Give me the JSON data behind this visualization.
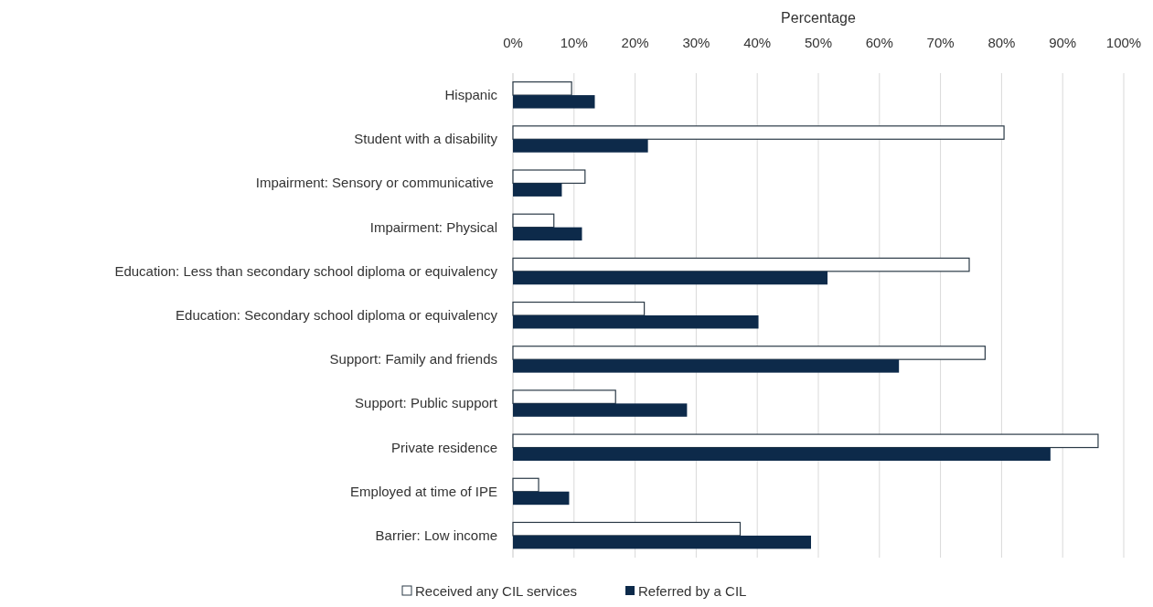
{
  "chart_data": {
    "type": "bar",
    "orientation": "horizontal",
    "xlabel": "Percentage",
    "categories": [
      "Hispanic",
      "Student with a disability",
      "Impairment: Sensory or communicative ",
      "Impairment: Physical",
      "Education: Less than secondary school diploma or equivalency",
      "Education: Secondary school diploma or equivalency",
      "Support: Family and friends",
      "Support: Public support",
      "Private residence",
      "Employed at time of IPE",
      "Barrier: Low income"
    ],
    "series": [
      {
        "name": "Received any CIL services",
        "color": "#ffffff",
        "values": [
          9.6,
          80.4,
          11.8,
          6.7,
          74.7,
          21.5,
          77.3,
          16.8,
          95.8,
          4.2,
          37.2
        ]
      },
      {
        "name": "Referred by a CIL",
        "color": "#0d2a4a",
        "values": [
          13.4,
          22.1,
          8.0,
          11.3,
          51.5,
          40.2,
          63.2,
          28.5,
          88.0,
          9.2,
          48.8
        ]
      }
    ],
    "xlim": [
      0,
      100
    ],
    "xticks": [
      {
        "value": 0,
        "label": "0%"
      },
      {
        "value": 10,
        "label": "10%"
      },
      {
        "value": 20,
        "label": "20%"
      },
      {
        "value": 30,
        "label": "30%"
      },
      {
        "value": 40,
        "label": "40%"
      },
      {
        "value": 50,
        "label": "50%"
      },
      {
        "value": 60,
        "label": "60%"
      },
      {
        "value": 70,
        "label": "70%"
      },
      {
        "value": 80,
        "label": "80%"
      },
      {
        "value": 90,
        "label": "90%"
      },
      {
        "value": 100,
        "label": "100%"
      }
    ],
    "grid": "x",
    "legend": "bottom"
  }
}
